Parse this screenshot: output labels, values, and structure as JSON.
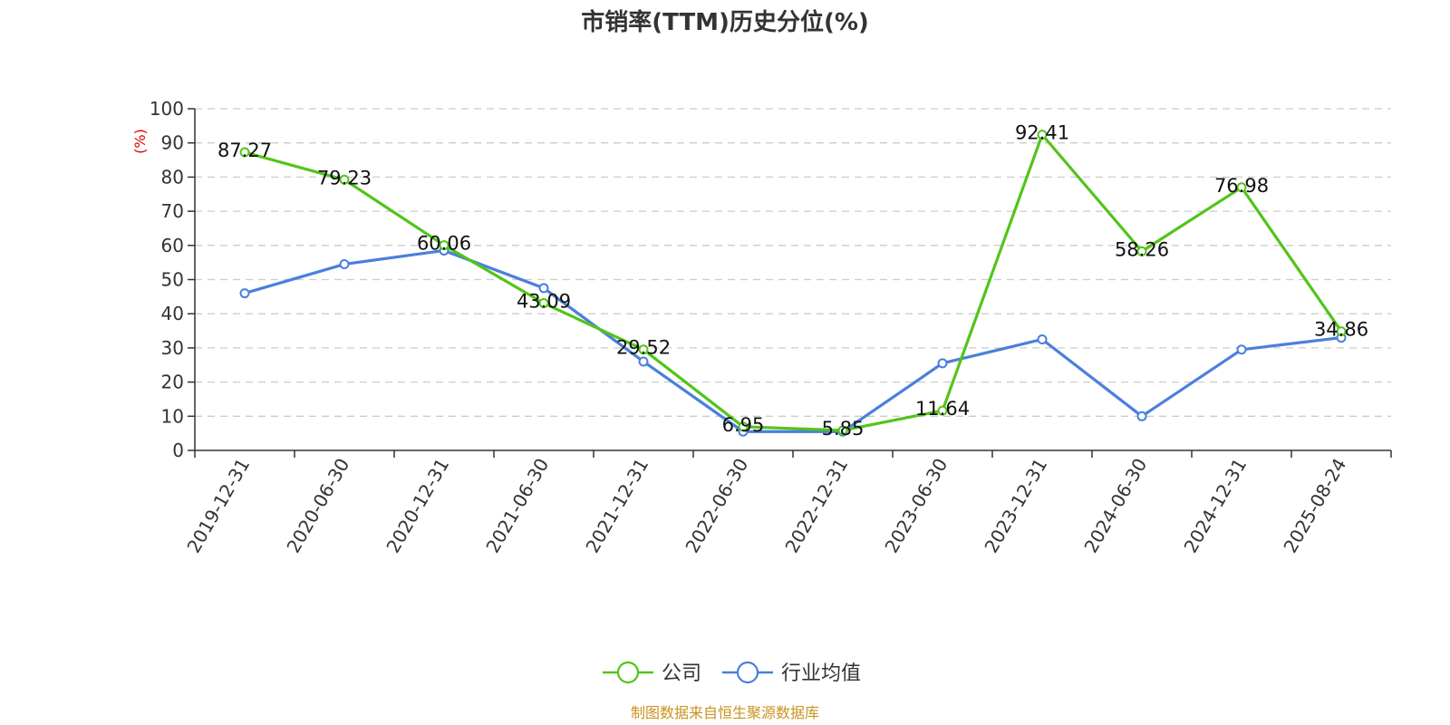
{
  "chart_data": {
    "type": "line",
    "title": "市销率(TTM)历史分位(%)",
    "ylabel": "(%)",
    "ylim": [
      0,
      100
    ],
    "yticks": [
      0,
      10,
      20,
      30,
      40,
      50,
      60,
      70,
      80,
      90,
      100
    ],
    "categories": [
      "2019-12-31",
      "2020-06-30",
      "2020-12-31",
      "2021-06-30",
      "2021-12-31",
      "2022-06-30",
      "2022-12-31",
      "2023-06-30",
      "2023-12-31",
      "2024-06-30",
      "2024-12-31",
      "2025-08-24"
    ],
    "series": [
      {
        "name": "公司",
        "color": "#52c41a",
        "values": [
          87.27,
          79.23,
          60.06,
          43.09,
          29.52,
          6.95,
          5.85,
          11.64,
          92.41,
          58.26,
          76.98,
          34.86
        ],
        "labels": [
          "87.27",
          "79.23",
          "60.06",
          "43.09",
          "29.52",
          "6.95",
          "5.85",
          "11.64",
          "92.41",
          "58.26",
          "76.98",
          "34.86"
        ]
      },
      {
        "name": "行业均值",
        "color": "#4a7fdc",
        "values": [
          46.0,
          54.5,
          58.5,
          47.5,
          26.0,
          5.5,
          5.5,
          25.5,
          32.5,
          10.0,
          29.5,
          33.0
        ]
      }
    ],
    "grid": true,
    "legend_position": "bottom-center",
    "source": "制图数据来自恒生聚源数据库",
    "ylabel_color": "#e00000",
    "source_color": "#c8931e"
  }
}
